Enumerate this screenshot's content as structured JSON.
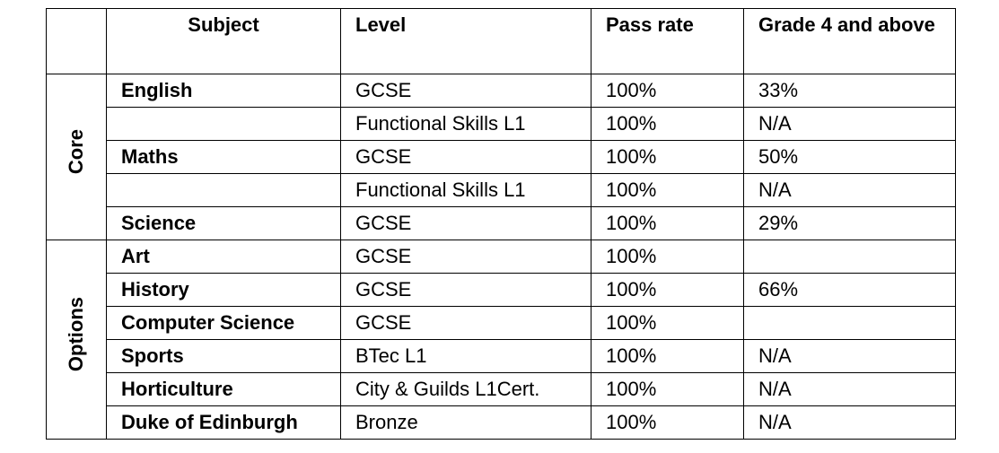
{
  "table": {
    "headers": {
      "group": "",
      "subject": "Subject",
      "level": "Level",
      "pass_rate": "Pass rate",
      "grade4": "Grade 4 and above"
    },
    "groups": {
      "core": "Core",
      "options": "Options"
    },
    "rows": [
      {
        "subject": "English",
        "level": "GCSE",
        "pass_rate": "100%",
        "grade4": "33%"
      },
      {
        "subject": "",
        "level": "Functional Skills L1",
        "pass_rate": "100%",
        "grade4": "N/A"
      },
      {
        "subject": "Maths",
        "level": "GCSE",
        "pass_rate": "100%",
        "grade4": "50%"
      },
      {
        "subject": "",
        "level": "Functional Skills L1",
        "pass_rate": "100%",
        "grade4": "N/A"
      },
      {
        "subject": "Science",
        "level": "GCSE",
        "pass_rate": "100%",
        "grade4": "29%"
      },
      {
        "subject": "Art",
        "level": "GCSE",
        "pass_rate": "100%",
        "grade4": ""
      },
      {
        "subject": "History",
        "level": "GCSE",
        "pass_rate": "100%",
        "grade4": "66%"
      },
      {
        "subject": "Computer Science",
        "level": "GCSE",
        "pass_rate": "100%",
        "grade4": ""
      },
      {
        "subject": "Sports",
        "level": "BTec L1",
        "pass_rate": "100%",
        "grade4": "N/A"
      },
      {
        "subject": "Horticulture",
        "level": "City & Guilds L1Cert.",
        "pass_rate": "100%",
        "grade4": "N/A"
      },
      {
        "subject": "Duke of Edinburgh",
        "level": "Bronze",
        "pass_rate": "100%",
        "grade4": "N/A"
      }
    ]
  }
}
